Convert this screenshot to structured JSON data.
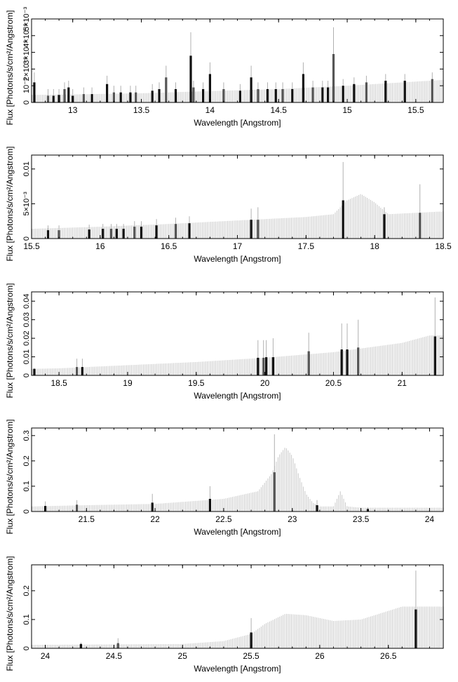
{
  "figure": {
    "ylabel": "Flux [Photons/s/cm²/Angstrom]",
    "xlabel": "Wavelength [Angstrom]"
  },
  "colors": {
    "model": "#c8c8c8",
    "data_dark": "#111111",
    "data_mid": "#555555",
    "axis": "#000000"
  },
  "chart_data": [
    {
      "type": "bar",
      "xlabel": "Wavelength [Angstrom]",
      "ylabel": "Flux [Photons/s/cm²/Angstrom]",
      "xlim": [
        12.7,
        15.7
      ],
      "ylim": [
        0,
        0.005
      ],
      "xticks": [
        13,
        13.5,
        14,
        14.5,
        15,
        15.5
      ],
      "xtick_labels": [
        "13",
        "13.5",
        "14",
        "14.5",
        "15",
        "15.5"
      ],
      "yticks": [
        0,
        0.001,
        0.002,
        0.003,
        0.004,
        0.005
      ],
      "ytick_labels": [
        "0",
        "10⁻³",
        "2×10⁻³",
        "3×10⁻³",
        "4×10⁻³",
        "5×10⁻³"
      ],
      "model": {
        "x": [
          12.7,
          13.0,
          13.5,
          14.0,
          14.5,
          15.0,
          15.5,
          15.7
        ],
        "y": [
          0.00045,
          0.00048,
          0.00055,
          0.00068,
          0.0008,
          0.001,
          0.00125,
          0.00135
        ]
      },
      "series": [
        {
          "x": [
            12.72,
            12.82,
            12.86,
            12.9,
            12.94,
            12.97,
            13.0,
            13.08,
            13.14,
            13.25,
            13.3,
            13.35,
            13.42,
            13.46,
            13.58,
            13.63,
            13.68,
            13.75,
            13.86,
            13.88,
            13.95,
            14.0,
            14.1,
            14.22,
            14.3,
            14.35,
            14.42,
            14.48,
            14.53,
            14.6,
            14.68,
            14.75,
            14.82,
            14.86,
            14.9,
            14.97,
            15.05,
            15.14,
            15.28,
            15.42,
            15.62
          ],
          "y": [
            0.0012,
            0.0004,
            0.0004,
            0.00045,
            0.0008,
            0.0009,
            0.0004,
            0.0005,
            0.0005,
            0.0011,
            0.0006,
            0.0006,
            0.0006,
            0.0006,
            0.0007,
            0.0008,
            0.0015,
            0.0008,
            0.0028,
            0.0009,
            0.0008,
            0.0017,
            0.0008,
            0.0007,
            0.0015,
            0.0008,
            0.0008,
            0.0008,
            0.0008,
            0.0008,
            0.0017,
            0.0009,
            0.0009,
            0.0009,
            0.0029,
            0.001,
            0.0011,
            0.0012,
            0.0013,
            0.0013,
            0.0014
          ],
          "err": [
            0.0018,
            0.0008,
            0.0008,
            0.0008,
            0.0012,
            0.0013,
            0.0008,
            0.0009,
            0.0009,
            0.0016,
            0.001,
            0.001,
            0.001,
            0.001,
            0.0011,
            0.0012,
            0.0022,
            0.0012,
            0.0042,
            0.0013,
            0.0012,
            0.0024,
            0.0012,
            0.0011,
            0.0022,
            0.0012,
            0.0012,
            0.0012,
            0.0012,
            0.0012,
            0.0024,
            0.0013,
            0.0013,
            0.0013,
            0.0045,
            0.0014,
            0.0015,
            0.0016,
            0.0017,
            0.0017,
            0.0018
          ]
        }
      ]
    },
    {
      "type": "bar",
      "xlabel": "Wavelength [Angstrom]",
      "ylabel": "Flux [Photons/s/cm²/Angstrom]",
      "xlim": [
        15.5,
        18.5
      ],
      "ylim": [
        0,
        0.012
      ],
      "xticks": [
        15.5,
        16,
        16.5,
        17,
        17.5,
        18,
        18.5
      ],
      "xtick_labels": [
        "15.5",
        "16",
        "16.5",
        "17",
        "17.5",
        "18",
        "18.5"
      ],
      "yticks": [
        0,
        0.005,
        0.01
      ],
      "ytick_labels": [
        "0",
        "5×10⁻³",
        "0.01"
      ],
      "model": {
        "x": [
          15.5,
          16.0,
          16.5,
          17.0,
          17.5,
          17.7,
          17.8,
          17.9,
          18.0,
          18.1,
          18.3,
          18.5
        ],
        "y": [
          0.0014,
          0.0017,
          0.0021,
          0.0026,
          0.0031,
          0.0035,
          0.0055,
          0.0064,
          0.0052,
          0.0035,
          0.0037,
          0.0039
        ]
      },
      "series": [
        {
          "x": [
            15.62,
            15.7,
            15.92,
            16.02,
            16.08,
            16.12,
            16.17,
            16.25,
            16.3,
            16.41,
            16.55,
            16.65,
            17.1,
            17.15,
            17.77,
            18.07,
            18.33
          ],
          "y": [
            0.0012,
            0.0012,
            0.0013,
            0.0014,
            0.0014,
            0.0014,
            0.0014,
            0.0017,
            0.0017,
            0.0019,
            0.0021,
            0.0022,
            0.0027,
            0.0027,
            0.0055,
            0.0035,
            0.0037
          ],
          "err": [
            0.0019,
            0.0019,
            0.002,
            0.0021,
            0.0021,
            0.0021,
            0.0021,
            0.0025,
            0.0025,
            0.0028,
            0.003,
            0.0032,
            0.0043,
            0.0045,
            0.011,
            0.0045,
            0.0078
          ]
        }
      ]
    },
    {
      "type": "bar",
      "xlabel": "Wavelength [Angstrom]",
      "ylabel": "Flux [Photons/s/cm²/Angstrom]",
      "xlim": [
        18.3,
        21.3
      ],
      "ylim": [
        0,
        0.045
      ],
      "xticks": [
        18.5,
        19,
        19.5,
        20,
        20.5,
        21
      ],
      "xtick_labels": [
        "18.5",
        "19",
        "19.5",
        "20",
        "20.5",
        "21"
      ],
      "yticks": [
        0,
        0.01,
        0.02,
        0.03,
        0.04
      ],
      "ytick_labels": [
        "0",
        "0.01",
        "0.02",
        "0.03",
        "0.04"
      ],
      "model": {
        "x": [
          18.3,
          18.5,
          19.0,
          19.5,
          20.0,
          20.5,
          21.0,
          21.2,
          21.3
        ],
        "y": [
          0.0035,
          0.0038,
          0.0055,
          0.0072,
          0.0095,
          0.0125,
          0.0175,
          0.0215,
          0.0215
        ]
      },
      "series": [
        {
          "x": [
            18.32,
            18.63,
            18.67,
            19.95,
            19.99,
            20.01,
            20.06,
            20.32,
            20.56,
            20.6,
            20.68,
            21.24
          ],
          "y": [
            0.0035,
            0.0045,
            0.0045,
            0.0095,
            0.0095,
            0.0098,
            0.0098,
            0.013,
            0.014,
            0.014,
            0.015,
            0.021
          ],
          "err": [
            0.004,
            0.009,
            0.009,
            0.019,
            0.019,
            0.019,
            0.02,
            0.023,
            0.028,
            0.028,
            0.03,
            0.042
          ]
        }
      ]
    },
    {
      "type": "bar",
      "xlabel": "Wavelength [Angstrom]",
      "ylabel": "Flux [Photons/s/cm²/Angstrom]",
      "xlim": [
        21.1,
        24.1
      ],
      "ylim": [
        0,
        0.33
      ],
      "xticks": [
        21.5,
        22,
        22.5,
        23,
        23.5,
        24
      ],
      "xtick_labels": [
        "21.5",
        "22",
        "22.5",
        "23",
        "23.5",
        "24"
      ],
      "yticks": [
        0,
        0.1,
        0.2,
        0.3
      ],
      "ytick_labels": [
        "0",
        "0.1",
        "0.2",
        "0.3"
      ],
      "model": {
        "x": [
          21.1,
          21.5,
          22.0,
          22.5,
          22.75,
          22.85,
          22.9,
          22.95,
          23.0,
          23.05,
          23.1,
          23.15,
          23.2,
          23.3,
          23.35,
          23.4,
          23.5,
          24.1
        ],
        "y": [
          0.02,
          0.025,
          0.03,
          0.05,
          0.08,
          0.15,
          0.22,
          0.255,
          0.22,
          0.14,
          0.07,
          0.035,
          0.02,
          0.02,
          0.08,
          0.02,
          0.015,
          0.015
        ]
      },
      "series": [
        {
          "x": [
            21.2,
            21.43,
            21.98,
            22.4,
            22.87,
            23.18,
            23.55
          ],
          "y": [
            0.022,
            0.027,
            0.035,
            0.05,
            0.155,
            0.025,
            0.01
          ],
          "err": [
            0.04,
            0.045,
            0.07,
            0.1,
            0.305,
            0.045,
            0.016
          ]
        }
      ]
    },
    {
      "type": "bar",
      "xlabel": "Wavelength [Angstrom]",
      "ylabel": "Flux [Photons/s/cm²/Angstrom]",
      "xlim": [
        23.9,
        26.9
      ],
      "ylim": [
        0,
        0.29
      ],
      "xticks": [
        24,
        24.5,
        25,
        25.5,
        26,
        26.5
      ],
      "xtick_labels": [
        "24",
        "24.5",
        "25",
        "25.5",
        "26",
        "26.5"
      ],
      "yticks": [
        0,
        0.1,
        0.2
      ],
      "ytick_labels": [
        "0",
        "0.1",
        "0.2"
      ],
      "model": {
        "x": [
          23.9,
          25.0,
          25.3,
          25.5,
          25.6,
          25.75,
          25.9,
          26.1,
          26.3,
          26.5,
          26.6,
          26.9
        ],
        "y": [
          0.012,
          0.015,
          0.025,
          0.05,
          0.085,
          0.12,
          0.115,
          0.095,
          0.1,
          0.13,
          0.145,
          0.145
        ]
      },
      "series": [
        {
          "x": [
            24.26,
            24.53,
            25.5,
            26.7
          ],
          "y": [
            0.015,
            0.018,
            0.055,
            0.135
          ],
          "err": [
            0.02,
            0.035,
            0.105,
            0.27
          ]
        }
      ]
    }
  ]
}
